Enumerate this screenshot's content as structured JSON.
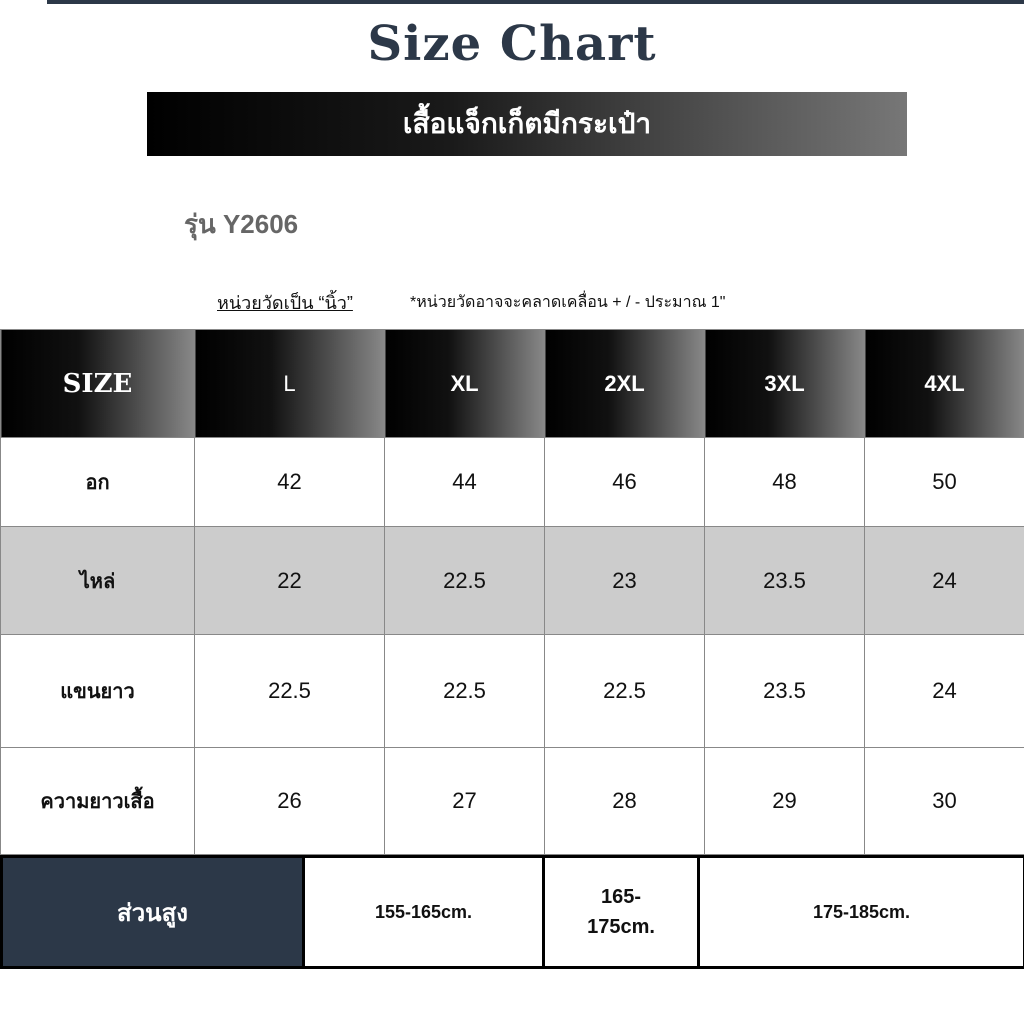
{
  "title": "Size Chart",
  "product": "เสื้อแจ็กเก็ตมีกระเป๋า",
  "model": "รุ่น Y2606",
  "unit_label": "หน่วยวัดเป็น “นิ้ว”",
  "note": "*หน่วยวัดอาจจะคลาดเคลื่อน + / - ประมาณ 1\"",
  "table": {
    "headers": [
      "SIZE",
      "L",
      "XL",
      "2XL",
      "3XL",
      "4XL"
    ],
    "rows": [
      {
        "label": "อก",
        "values": [
          "42",
          "44",
          "46",
          "48",
          "50"
        ]
      },
      {
        "label": "ไหล่",
        "values": [
          "22",
          "22.5",
          "23",
          "23.5",
          "24"
        ]
      },
      {
        "label": "แขนยาว",
        "values": [
          "22.5",
          "22.5",
          "22.5",
          "23.5",
          "24"
        ]
      },
      {
        "label": "ความยาวเสื้อ",
        "values": [
          "26",
          "27",
          "28",
          "29",
          "30"
        ]
      }
    ]
  },
  "height": {
    "label": "ส่วนสูง",
    "ranges": [
      "155-165cm.",
      "165-175cm.",
      "175-185cm."
    ]
  },
  "colors": {
    "navy": "#2c3848",
    "gray_row": "#cccccc"
  }
}
